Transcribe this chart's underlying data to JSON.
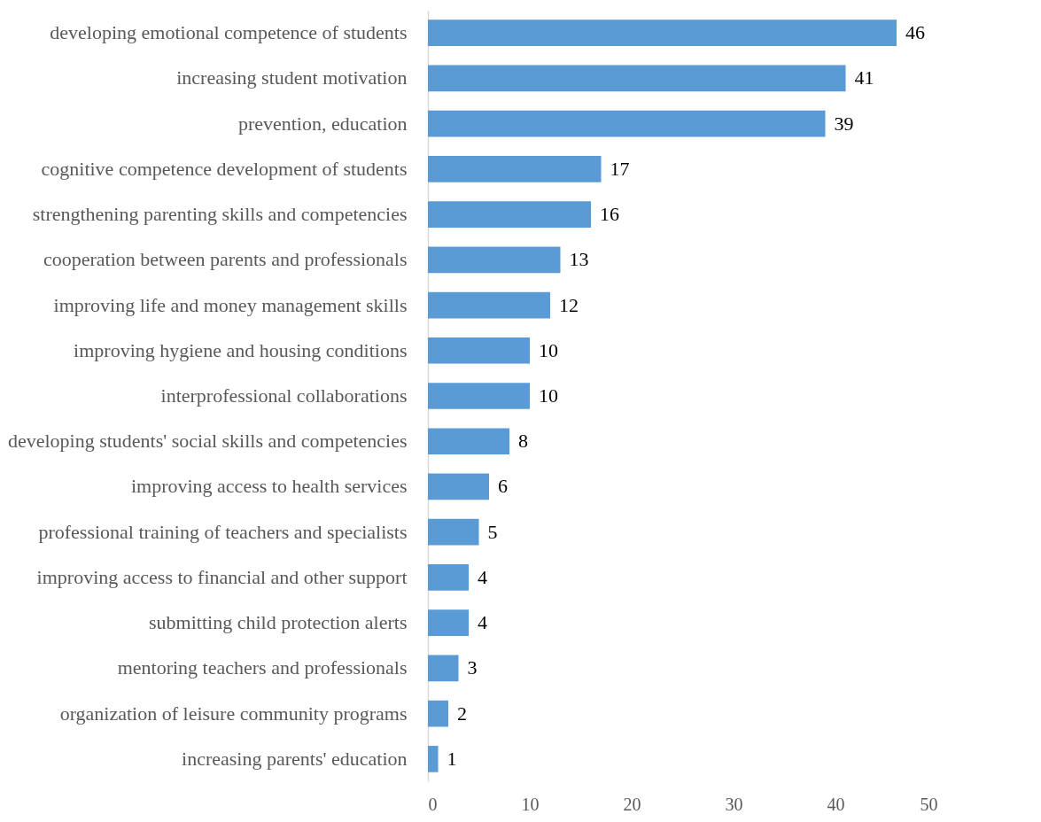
{
  "chart_data": {
    "type": "bar",
    "orientation": "horizontal",
    "categories": [
      "developing emotional competence of students",
      "increasing student motivation",
      "prevention, education",
      "cognitive competence development of students",
      "strengthening parenting skills and competencies",
      "cooperation between parents and professionals",
      "improving life and money management skills",
      "improving hygiene and housing conditions",
      "interprofessional collaborations",
      "developing students' social skills and competencies",
      "improving access to health services",
      "professional training of teachers and specialists",
      "improving access to financial and other support",
      "submitting child protection alerts",
      "mentoring teachers and professionals",
      "organization of leisure community programs",
      "increasing parents' education"
    ],
    "values": [
      46,
      41,
      39,
      17,
      16,
      13,
      12,
      10,
      10,
      8,
      6,
      5,
      4,
      4,
      3,
      2,
      1
    ],
    "color": "#5b9bd5",
    "xlim": [
      0,
      50
    ],
    "xticks": [
      0,
      10,
      20,
      30,
      40,
      50
    ],
    "grid": false,
    "data_labels": true
  }
}
